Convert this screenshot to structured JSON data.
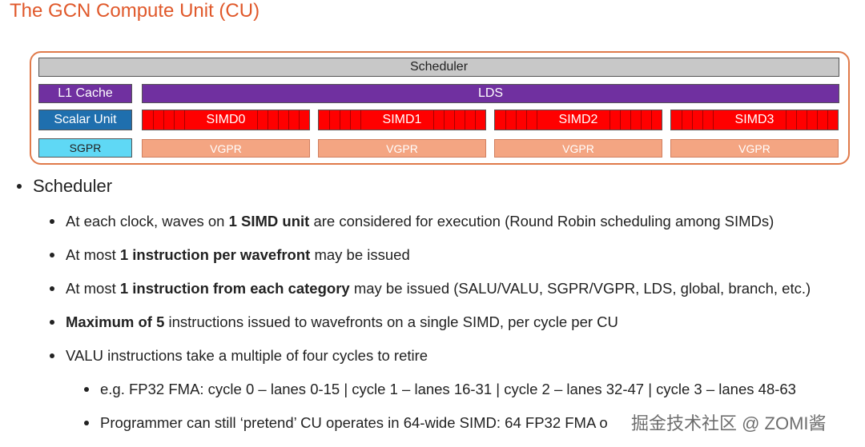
{
  "header": {
    "title": "The GCN Compute Unit (CU)"
  },
  "diagram": {
    "scheduler": "Scheduler",
    "l1_cache": "L1 Cache",
    "lds": "LDS",
    "scalar_unit": "Scalar Unit",
    "sgpr": "SGPR",
    "simds": [
      {
        "label": "SIMD0",
        "vgpr": "VGPR"
      },
      {
        "label": "SIMD1",
        "vgpr": "VGPR"
      },
      {
        "label": "SIMD2",
        "vgpr": "VGPR"
      },
      {
        "label": "SIMD3",
        "vgpr": "VGPR"
      }
    ]
  },
  "bullets": [
    {
      "text": "Scheduler",
      "items": [
        {
          "runs": [
            {
              "text": "At each clock, waves on ",
              "bold": false
            },
            {
              "text": "1 SIMD unit",
              "bold": true
            },
            {
              "text": " are considered for execution (Round Robin scheduling among SIMDs)",
              "bold": false
            }
          ]
        },
        {
          "runs": [
            {
              "text": "At most ",
              "bold": false
            },
            {
              "text": "1 instruction per wavefront",
              "bold": true
            },
            {
              "text": " may be issued",
              "bold": false
            }
          ]
        },
        {
          "runs": [
            {
              "text": "At most ",
              "bold": false
            },
            {
              "text": "1 instruction from each category",
              "bold": true
            },
            {
              "text": " may be issued (SALU/VALU, SGPR/VGPR, LDS, global, branch, etc.)",
              "bold": false
            }
          ]
        },
        {
          "runs": [
            {
              "text": "Maximum of 5",
              "bold": true
            },
            {
              "text": " instructions issued to wavefronts on a single SIMD, per cycle per CU",
              "bold": false
            }
          ]
        },
        {
          "runs": [
            {
              "text": "VALU instructions take a multiple of four cycles to retire",
              "bold": false
            }
          ],
          "items": [
            {
              "runs": [
                {
                  "text": "e.g. FP32 FMA: cycle 0 – lanes 0-15 | cycle 1 – lanes 16-31 | cycle 2 – lanes 32-47 | cycle 3 – lanes 48-63",
                  "bold": false
                }
              ]
            },
            {
              "runs": [
                {
                  "text": "Programmer can still ‘pretend’ CU operates in 64-wide SIMD: 64 FP32 FMA o",
                  "bold": false
                }
              ]
            }
          ]
        }
      ]
    }
  ],
  "watermark": "掘金技术社区 @ ZOMI酱"
}
